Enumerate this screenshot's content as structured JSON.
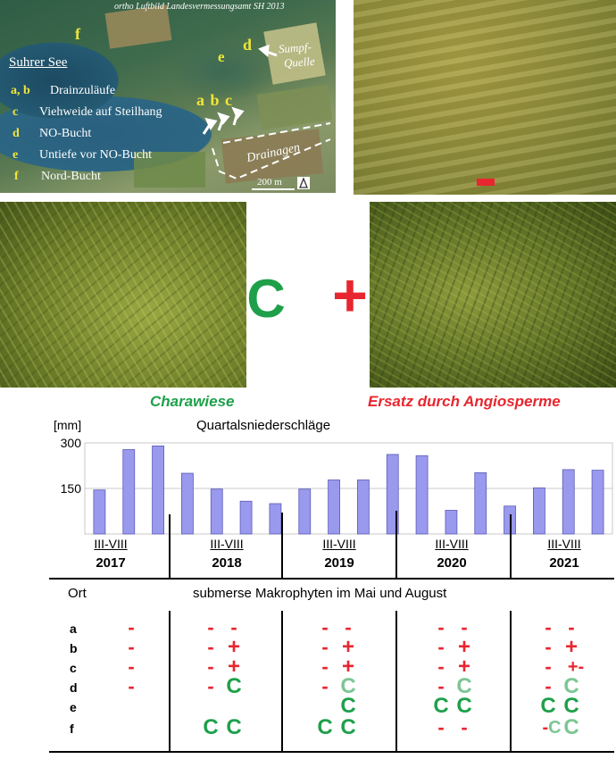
{
  "aerial": {
    "credit": "ortho Luftbild Landesvermessungsamt SH 2013",
    "legend_title": "Suhrer See",
    "legend": [
      {
        "key": "a, b",
        "text": "Drainzuläufe"
      },
      {
        "key": "c",
        "text": "Viehweide auf Steilhang"
      },
      {
        "key": "d",
        "text": "NO-Bucht"
      },
      {
        "key": "e",
        "text": "Untiefe vor NO-Bucht"
      },
      {
        "key": "f",
        "text": "Nord-Bucht"
      }
    ],
    "map_letters": {
      "f": "f",
      "e": "e",
      "d": "d",
      "abc": "a b c"
    },
    "sumpf_label": "Sumpf-",
    "quelle_label": "Quelle",
    "drainagen_label": "Drainagen",
    "scale_label": "200 m"
  },
  "center_symbols": {
    "chara": "C",
    "angio": "+"
  },
  "captions": {
    "chara": "Charawiese",
    "angio": "Ersatz durch Angiosperme"
  },
  "colors": {
    "green": "#1ea04a",
    "light_green": "#7cc694",
    "red": "#e8262f",
    "bar": "#9999ee"
  },
  "chart_data": {
    "type": "bar",
    "title": "Quartalsniederschläge",
    "ylabel": "[mm]",
    "ylim": [
      0,
      300
    ],
    "yticks": [
      150,
      300
    ],
    "grid": true,
    "values": [
      145,
      278,
      290,
      200,
      148,
      108,
      100,
      148,
      178,
      178,
      262,
      258,
      78,
      202,
      92,
      152,
      212,
      210
    ],
    "year_groups": [
      {
        "year": "2017",
        "period": "III-VIII"
      },
      {
        "year": "2018",
        "period": "III-VIII"
      },
      {
        "year": "2019",
        "period": "III-VIII"
      },
      {
        "year": "2020",
        "period": "III-VIII"
      },
      {
        "year": "2021",
        "period": "III-VIII"
      }
    ]
  },
  "table": {
    "ort_header": "Ort",
    "header": "submerse Makrophyten im Mai und August",
    "rows": [
      {
        "label": "a",
        "cells": [
          [
            "-"
          ],
          [
            "-",
            "-"
          ],
          [
            "-",
            "-"
          ],
          [
            "-",
            "-"
          ],
          [
            "-",
            "-"
          ]
        ]
      },
      {
        "label": "b",
        "cells": [
          [
            "-"
          ],
          [
            "-",
            "+"
          ],
          [
            "-",
            "+"
          ],
          [
            "-",
            "+"
          ],
          [
            "-",
            "+"
          ]
        ]
      },
      {
        "label": "c",
        "cells": [
          [
            "-"
          ],
          [
            "-",
            "+"
          ],
          [
            "-",
            "+"
          ],
          [
            "-",
            "+"
          ],
          [
            "-",
            "+-"
          ]
        ]
      },
      {
        "label": "d",
        "cells": [
          [
            "-"
          ],
          [
            "-",
            "C"
          ],
          [
            "-",
            "C"
          ],
          [
            "-",
            "C"
          ],
          [
            "-",
            "C"
          ]
        ]
      },
      {
        "label": "e",
        "cells": [
          [],
          [],
          [
            "",
            "C"
          ],
          [
            "C",
            "C"
          ],
          [
            "C",
            "C"
          ]
        ]
      },
      {
        "label": "f",
        "cells": [
          [],
          [
            "C",
            "C"
          ],
          [
            "C",
            "C"
          ],
          [
            "-",
            "-"
          ],
          [
            "-C",
            "C"
          ]
        ]
      }
    ],
    "light_green": [
      [
        3,
        2,
        1
      ],
      [
        3,
        3,
        1
      ],
      [
        3,
        4,
        1
      ],
      [
        5,
        4,
        0
      ],
      [
        5,
        4,
        1
      ]
    ]
  }
}
